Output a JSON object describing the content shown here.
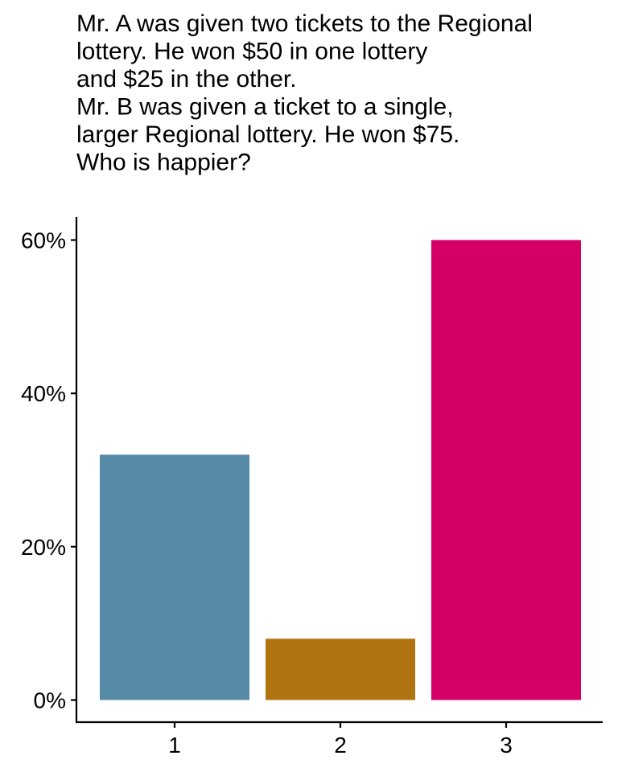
{
  "chart_data": {
    "type": "bar",
    "title_lines": [
      "Mr. A was given two tickets to the Regional",
      "lottery. He won $50 in one lottery",
      "and $25 in the other.",
      "Mr. B was given a ticket to a single,",
      "larger Regional lottery. He won $75.",
      "Who is happier?"
    ],
    "xlabel": "",
    "ylabel": "",
    "categories": [
      "1",
      "2",
      "3"
    ],
    "values": [
      32,
      8,
      60
    ],
    "value_unit": "%",
    "ylim": [
      0,
      63
    ],
    "yticks": [
      0,
      20,
      40,
      60
    ],
    "ytick_labels": [
      "0%",
      "20%",
      "40%",
      "60%"
    ],
    "bar_colors": [
      "#568AA6",
      "#B07510",
      "#D50066"
    ],
    "grid": false,
    "legend": "none"
  }
}
